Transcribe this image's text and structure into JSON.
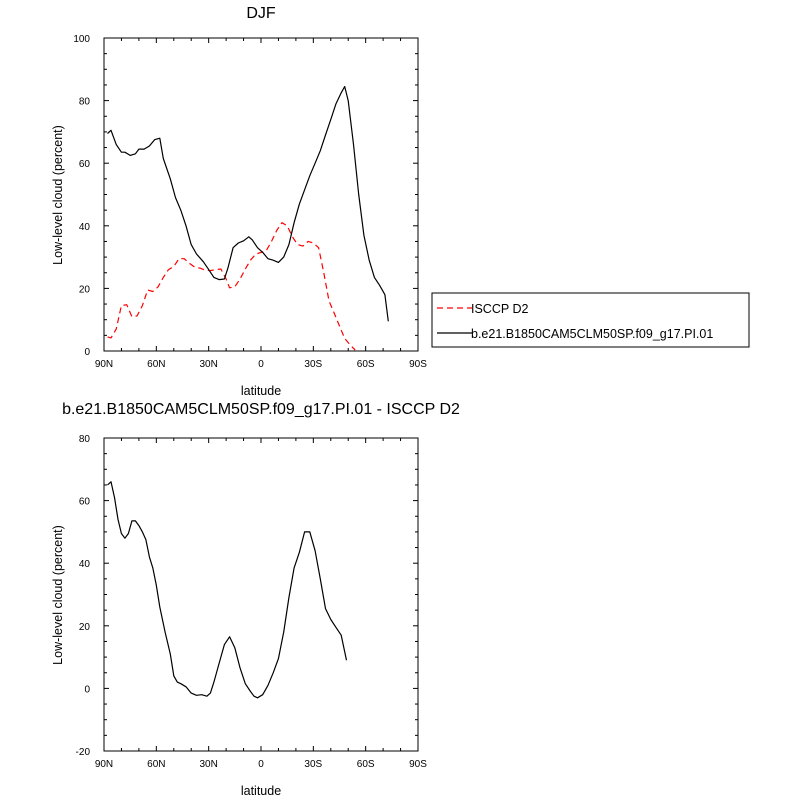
{
  "chart_data": [
    {
      "type": "line",
      "title": "DJF",
      "xlabel": "latitude",
      "ylabel": "Low-level cloud (percent)",
      "xlim": [
        -90,
        90
      ],
      "ylim": [
        0,
        100
      ],
      "x_ticks": [
        -90,
        -60,
        -30,
        0,
        30,
        60,
        90
      ],
      "x_tick_labels": [
        "90N",
        "60N",
        "30N",
        "0",
        "30S",
        "60S",
        "90S"
      ],
      "y_ticks": [
        0,
        20,
        40,
        60,
        80,
        100
      ],
      "y_tick_labels": [
        "0",
        "20",
        "40",
        "60",
        "80",
        "100"
      ],
      "legend_position": "right-bottom, outside plot",
      "series": [
        {
          "name": "ISCCP D2",
          "color": "#ff0000",
          "style": "dashed",
          "points": [
            [
              -88,
              4.5
            ],
            [
              -86,
              4.2
            ],
            [
              -83,
              7
            ],
            [
              -80,
              14.5
            ],
            [
              -77,
              14.8
            ],
            [
              -74,
              11
            ],
            [
              -71,
              11.2
            ],
            [
              -68,
              14.5
            ],
            [
              -65,
              19.5
            ],
            [
              -62,
              19
            ],
            [
              -59,
              20.5
            ],
            [
              -56,
              23.5
            ],
            [
              -53,
              26
            ],
            [
              -50,
              27
            ],
            [
              -47,
              29.5
            ],
            [
              -44,
              29.5
            ],
            [
              -41,
              28
            ],
            [
              -38,
              26.8
            ],
            [
              -35,
              26.5
            ],
            [
              -32,
              25.8
            ],
            [
              -29,
              25.7
            ],
            [
              -26,
              26
            ],
            [
              -23,
              26.2
            ],
            [
              -20,
              23
            ],
            [
              -18,
              20.2
            ],
            [
              -15,
              20.5
            ],
            [
              -12,
              23
            ],
            [
              -9,
              26.2
            ],
            [
              -6,
              29
            ],
            [
              -3,
              31
            ],
            [
              0,
              31.5
            ],
            [
              3,
              32
            ],
            [
              6,
              35
            ],
            [
              9,
              38.5
            ],
            [
              12,
              41
            ],
            [
              15,
              40
            ],
            [
              18,
              36.5
            ],
            [
              21,
              34
            ],
            [
              24,
              33.5
            ],
            [
              27,
              35
            ],
            [
              30,
              34.5
            ],
            [
              33,
              33
            ],
            [
              36,
              25
            ],
            [
              39,
              16
            ],
            [
              42,
              12
            ],
            [
              45,
              8
            ],
            [
              48,
              4
            ],
            [
              51,
              2
            ],
            [
              54,
              0.3
            ]
          ]
        },
        {
          "name": "b.e21.B1850CAM5CLM50SP.f09_g17.PI.01",
          "color": "#000000",
          "style": "solid",
          "points": [
            [
              -88,
              69.5
            ],
            [
              -86,
              70.5
            ],
            [
              -83,
              66
            ],
            [
              -80,
              63.5
            ],
            [
              -78,
              63.5
            ],
            [
              -75,
              62.5
            ],
            [
              -72,
              63
            ],
            [
              -70,
              64.5
            ],
            [
              -67,
              64.5
            ],
            [
              -64,
              65.5
            ],
            [
              -61,
              67.5
            ],
            [
              -58,
              68
            ],
            [
              -56,
              61.5
            ],
            [
              -52,
              55
            ],
            [
              -49,
              49
            ],
            [
              -46,
              45
            ],
            [
              -43,
              40
            ],
            [
              -40,
              34
            ],
            [
              -37,
              31
            ],
            [
              -33,
              28.5
            ],
            [
              -30,
              26
            ],
            [
              -27,
              23.5
            ],
            [
              -24,
              22.8
            ],
            [
              -21,
              23
            ],
            [
              -19,
              26.5
            ],
            [
              -16,
              33
            ],
            [
              -13,
              34.5
            ],
            [
              -10,
              35.2
            ],
            [
              -7,
              36.5
            ],
            [
              -5,
              35.5
            ],
            [
              -2,
              33
            ],
            [
              1,
              31.5
            ],
            [
              4,
              29.5
            ],
            [
              7,
              29
            ],
            [
              10,
              28.3
            ],
            [
              13,
              30
            ],
            [
              16,
              34
            ],
            [
              19,
              41
            ],
            [
              22,
              47
            ],
            [
              25,
              51.5
            ],
            [
              28,
              56
            ],
            [
              31,
              60
            ],
            [
              34,
              64
            ],
            [
              37,
              69
            ],
            [
              40,
              74
            ],
            [
              43,
              79
            ],
            [
              46,
              82.5
            ],
            [
              48,
              84.5
            ],
            [
              50,
              80
            ],
            [
              53,
              66
            ],
            [
              56,
              50
            ],
            [
              59,
              37
            ],
            [
              62,
              29
            ],
            [
              65,
              23.5
            ],
            [
              68,
              21
            ],
            [
              71,
              18
            ],
            [
              73,
              9.5
            ]
          ]
        }
      ]
    },
    {
      "type": "line",
      "title": "b.e21.B1850CAM5CLM50SP.f09_g17.PI.01 - ISCCP D2",
      "xlabel": "latitude",
      "ylabel": "Low-level cloud (percent)",
      "xlim": [
        -90,
        90
      ],
      "ylim": [
        -20,
        80
      ],
      "x_ticks": [
        -90,
        -60,
        -30,
        0,
        30,
        60,
        90
      ],
      "x_tick_labels": [
        "90N",
        "60N",
        "30N",
        "0",
        "30S",
        "60S",
        "90S"
      ],
      "y_ticks": [
        -20,
        0,
        20,
        40,
        60,
        80
      ],
      "y_tick_labels": [
        "-20",
        "0",
        "20",
        "40",
        "60",
        "80"
      ],
      "series": [
        {
          "color": "#000000",
          "style": "solid",
          "points": [
            [
              -88,
              65
            ],
            [
              -86,
              66
            ],
            [
              -84,
              61
            ],
            [
              -82,
              54
            ],
            [
              -80,
              49.5
            ],
            [
              -78,
              48
            ],
            [
              -76,
              49.5
            ],
            [
              -74,
              53.5
            ],
            [
              -72,
              53.5
            ],
            [
              -70,
              52
            ],
            [
              -68,
              50
            ],
            [
              -66,
              47.5
            ],
            [
              -64,
              42
            ],
            [
              -62,
              38.5
            ],
            [
              -60,
              33
            ],
            [
              -58,
              26
            ],
            [
              -55,
              18
            ],
            [
              -52,
              11
            ],
            [
              -50,
              4
            ],
            [
              -48,
              2
            ],
            [
              -46,
              1.5
            ],
            [
              -43,
              0.5
            ],
            [
              -40,
              -1.5
            ],
            [
              -37,
              -2.2
            ],
            [
              -34,
              -2
            ],
            [
              -31,
              -2.5
            ],
            [
              -29,
              -1.5
            ],
            [
              -27,
              2
            ],
            [
              -24,
              8
            ],
            [
              -21,
              14
            ],
            [
              -18,
              16.5
            ],
            [
              -15,
              13
            ],
            [
              -12,
              6.5
            ],
            [
              -9,
              1.5
            ],
            [
              -6,
              -1
            ],
            [
              -4,
              -2.5
            ],
            [
              -2,
              -3
            ],
            [
              1,
              -2
            ],
            [
              4,
              1
            ],
            [
              7,
              5
            ],
            [
              10,
              9.5
            ],
            [
              13,
              18
            ],
            [
              16,
              29
            ],
            [
              19,
              38.5
            ],
            [
              22,
              43.5
            ],
            [
              25,
              50
            ],
            [
              28,
              50
            ],
            [
              31,
              44
            ],
            [
              34,
              35
            ],
            [
              37,
              25.5
            ],
            [
              40,
              22
            ],
            [
              43,
              19.5
            ],
            [
              46,
              17
            ],
            [
              49,
              9
            ]
          ]
        }
      ]
    }
  ]
}
